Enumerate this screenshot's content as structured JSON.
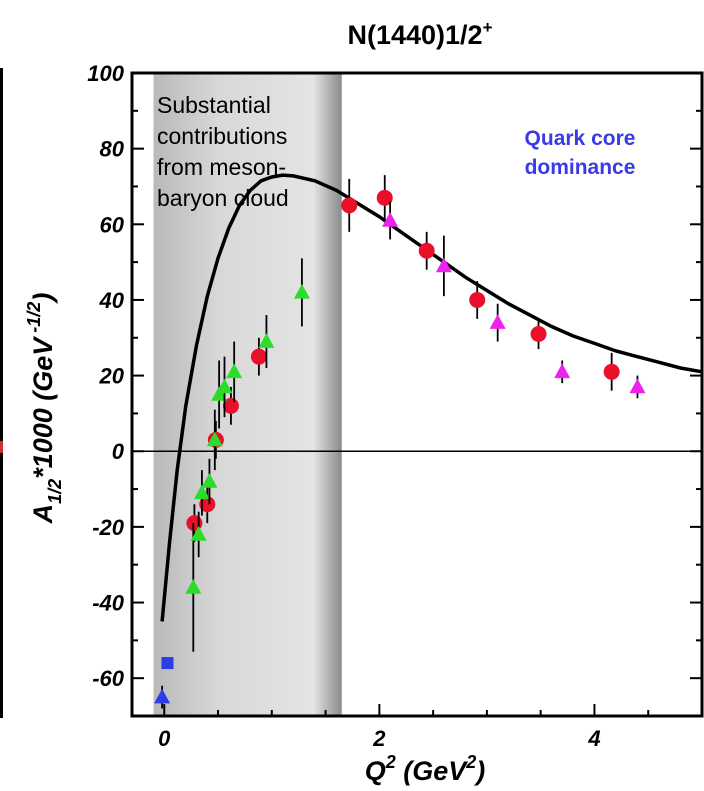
{
  "chart_data": {
    "type": "scatter",
    "title_main": "N(1440)1/2",
    "title_sup": "+",
    "xlim": [
      -0.3,
      5.0
    ],
    "ylim": [
      -70,
      100
    ],
    "x_ticks": [
      0,
      2,
      4
    ],
    "y_ticks": [
      -60,
      -40,
      -20,
      0,
      20,
      40,
      60,
      80,
      100
    ],
    "xlabel": {
      "base": "Q",
      "sup": "2",
      "rest": " (GeV",
      "sup2": "2",
      "end": ")"
    },
    "ylabel": {
      "base": "A",
      "sub": "1/2",
      "rest": "*1000 (GeV",
      "sup": " -1/2",
      "end": ")"
    },
    "shaded_region": {
      "x0": -0.1,
      "x1": 1.65
    },
    "annotation_left": [
      "Substantial",
      "contributions",
      "from meson-",
      "baryon cloud"
    ],
    "annotation_right": [
      "Quark core",
      "dominance"
    ],
    "colors": {
      "red": "#e8102a",
      "green": "#2bdc2b",
      "magenta": "#ee22ee",
      "blue": "#2a3de6",
      "curve": "#000000"
    },
    "series": [
      {
        "marker": "circle",
        "color": "red",
        "points": [
          {
            "x": 0.28,
            "y": -19,
            "err": 5
          },
          {
            "x": 0.4,
            "y": -14,
            "err": 5
          },
          {
            "x": 0.48,
            "y": 3,
            "err": 5
          },
          {
            "x": 0.62,
            "y": 12,
            "err": 5
          },
          {
            "x": 0.88,
            "y": 25,
            "err": 5
          },
          {
            "x": 1.72,
            "y": 65,
            "err": 7
          },
          {
            "x": 2.05,
            "y": 67,
            "err": 6
          },
          {
            "x": 2.44,
            "y": 53,
            "err": 5
          },
          {
            "x": 2.91,
            "y": 40,
            "err": 5
          },
          {
            "x": 3.48,
            "y": 31,
            "err": 4
          },
          {
            "x": 4.16,
            "y": 21,
            "err": 5
          }
        ]
      },
      {
        "marker": "triangle",
        "color": "green",
        "points": [
          {
            "x": 0.27,
            "y": -36,
            "err": 17
          },
          {
            "x": 0.32,
            "y": -22,
            "err": 6
          },
          {
            "x": 0.35,
            "y": -11,
            "err": 6
          },
          {
            "x": 0.42,
            "y": -8,
            "err": 6
          },
          {
            "x": 0.47,
            "y": 3,
            "err": 8
          },
          {
            "x": 0.51,
            "y": 15,
            "err": 9
          },
          {
            "x": 0.56,
            "y": 17,
            "err": 8
          },
          {
            "x": 0.65,
            "y": 21,
            "err": 8
          },
          {
            "x": 0.95,
            "y": 29,
            "err": 7
          },
          {
            "x": 1.28,
            "y": 42,
            "err": 9
          }
        ]
      },
      {
        "marker": "triangle",
        "color": "magenta",
        "points": [
          {
            "x": 2.1,
            "y": 61,
            "err": 5
          },
          {
            "x": 2.6,
            "y": 49,
            "err": 8
          },
          {
            "x": 3.1,
            "y": 34,
            "err": 5
          },
          {
            "x": 3.7,
            "y": 21,
            "err": 3
          },
          {
            "x": 4.4,
            "y": 17,
            "err": 3
          }
        ]
      },
      {
        "marker": "square",
        "color": "blue",
        "points": [
          {
            "x": 0.03,
            "y": -56,
            "err": 0
          }
        ]
      },
      {
        "marker": "triangle",
        "color": "blue",
        "points": [
          {
            "x": -0.02,
            "y": -65,
            "err": 3
          }
        ]
      }
    ],
    "curve": [
      [
        -0.02,
        -45
      ],
      [
        0.05,
        -24
      ],
      [
        0.12,
        -5
      ],
      [
        0.2,
        12
      ],
      [
        0.3,
        28
      ],
      [
        0.4,
        41
      ],
      [
        0.5,
        51
      ],
      [
        0.6,
        59
      ],
      [
        0.7,
        65
      ],
      [
        0.8,
        69
      ],
      [
        0.9,
        71.5
      ],
      [
        1.0,
        72.5
      ],
      [
        1.1,
        73
      ],
      [
        1.2,
        72.8
      ],
      [
        1.4,
        71.5
      ],
      [
        1.6,
        69
      ],
      [
        1.8,
        65.5
      ],
      [
        2.0,
        62
      ],
      [
        2.2,
        58
      ],
      [
        2.4,
        54
      ],
      [
        2.6,
        50
      ],
      [
        2.8,
        46
      ],
      [
        3.0,
        42.5
      ],
      [
        3.2,
        39
      ],
      [
        3.4,
        36
      ],
      [
        3.6,
        33
      ],
      [
        3.8,
        30.5
      ],
      [
        4.0,
        28.5
      ],
      [
        4.2,
        26.5
      ],
      [
        4.4,
        25
      ],
      [
        4.6,
        23.5
      ],
      [
        4.8,
        22
      ],
      [
        5.0,
        21
      ]
    ]
  }
}
